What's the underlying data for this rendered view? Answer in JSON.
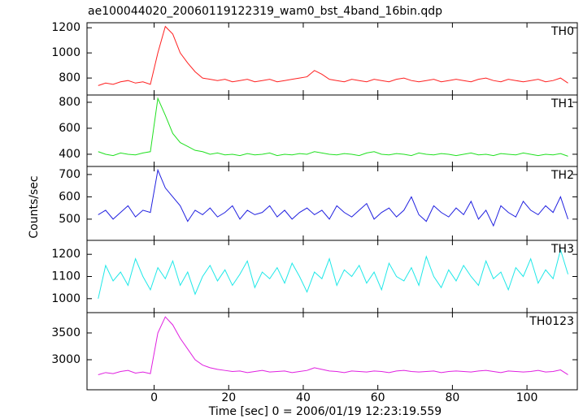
{
  "chart_data": {
    "type": "line",
    "title": "ae100044020_20060119122319_wam0_bst_4band_16bin.qdp",
    "x_label": "Time [sec] 0 = 2006/01/19 12:23:19.559",
    "y_label": "Counts/sec",
    "xlim": [
      -18,
      113.5
    ],
    "xticks": [
      0,
      20,
      40,
      60,
      80,
      100
    ],
    "x": [
      -15,
      -13,
      -11,
      -9,
      -7,
      -5,
      -3,
      -1,
      1,
      3,
      5,
      7,
      9,
      11,
      13,
      15,
      17,
      19,
      21,
      23,
      25,
      27,
      29,
      31,
      33,
      35,
      37,
      39,
      41,
      43,
      45,
      47,
      49,
      51,
      53,
      55,
      57,
      59,
      61,
      63,
      65,
      67,
      69,
      71,
      73,
      75,
      77,
      79,
      81,
      83,
      85,
      87,
      89,
      91,
      93,
      95,
      97,
      99,
      101,
      103,
      105,
      107,
      109,
      111
    ],
    "series": [
      {
        "name": "TH0",
        "color": "#ff2020",
        "ylim": [
          665,
          1240
        ],
        "yticks": [
          800,
          1000,
          1200
        ],
        "values": [
          740,
          760,
          750,
          770,
          780,
          760,
          770,
          750,
          1000,
          1210,
          1150,
          1000,
          920,
          850,
          800,
          790,
          780,
          790,
          770,
          780,
          790,
          770,
          780,
          790,
          770,
          780,
          790,
          800,
          810,
          860,
          830,
          790,
          780,
          770,
          790,
          780,
          770,
          790,
          780,
          770,
          790,
          800,
          780,
          770,
          780,
          790,
          770,
          780,
          790,
          780,
          770,
          790,
          800,
          780,
          770,
          790,
          780,
          770,
          780,
          790,
          770,
          780,
          800,
          760
        ]
      },
      {
        "name": "TH1",
        "color": "#20e020",
        "ylim": [
          306,
          856
        ],
        "yticks": [
          400,
          600,
          800
        ],
        "values": [
          420,
          400,
          390,
          410,
          400,
          395,
          410,
          420,
          830,
          700,
          560,
          490,
          460,
          430,
          420,
          400,
          410,
          395,
          400,
          390,
          405,
          395,
          400,
          410,
          390,
          400,
          395,
          405,
          400,
          420,
          410,
          400,
          395,
          405,
          400,
          390,
          410,
          420,
          400,
          395,
          405,
          400,
          390,
          410,
          400,
          395,
          405,
          400,
          390,
          400,
          410,
          395,
          400,
          390,
          405,
          400,
          395,
          410,
          400,
          390,
          400,
          395,
          405,
          385
        ]
      },
      {
        "name": "TH2",
        "color": "#2020e0",
        "ylim": [
          405,
          736
        ],
        "yticks": [
          500,
          600,
          700
        ],
        "values": [
          520,
          540,
          500,
          530,
          560,
          510,
          540,
          530,
          720,
          640,
          600,
          560,
          490,
          540,
          520,
          550,
          510,
          530,
          560,
          500,
          540,
          520,
          530,
          560,
          510,
          540,
          500,
          530,
          550,
          520,
          540,
          500,
          560,
          530,
          510,
          540,
          570,
          500,
          530,
          550,
          510,
          540,
          600,
          520,
          490,
          560,
          530,
          510,
          550,
          520,
          580,
          500,
          540,
          470,
          560,
          530,
          510,
          580,
          540,
          520,
          560,
          530,
          600,
          500
        ]
      },
      {
        "name": "TH3",
        "color": "#20e8e8",
        "ylim": [
          937,
          1263
        ],
        "yticks": [
          1000,
          1100,
          1200
        ],
        "values": [
          1000,
          1150,
          1080,
          1120,
          1060,
          1180,
          1100,
          1040,
          1140,
          1090,
          1170,
          1060,
          1120,
          1020,
          1100,
          1150,
          1080,
          1130,
          1060,
          1110,
          1170,
          1050,
          1120,
          1090,
          1140,
          1070,
          1160,
          1100,
          1030,
          1120,
          1090,
          1180,
          1060,
          1130,
          1100,
          1150,
          1070,
          1120,
          1040,
          1160,
          1100,
          1080,
          1140,
          1060,
          1190,
          1100,
          1050,
          1130,
          1080,
          1150,
          1100,
          1060,
          1170,
          1090,
          1120,
          1040,
          1140,
          1100,
          1180,
          1070,
          1130,
          1090,
          1220,
          1110
        ]
      },
      {
        "name": "TH0123",
        "color": "#e020e0",
        "ylim": [
          2439,
          3879
        ],
        "yticks": [
          3000,
          3500
        ],
        "values": [
          2720,
          2760,
          2740,
          2780,
          2800,
          2750,
          2770,
          2740,
          3500,
          3800,
          3650,
          3400,
          3200,
          3000,
          2900,
          2850,
          2820,
          2800,
          2780,
          2790,
          2760,
          2780,
          2800,
          2770,
          2780,
          2790,
          2760,
          2780,
          2800,
          2850,
          2820,
          2790,
          2780,
          2760,
          2790,
          2780,
          2770,
          2790,
          2780,
          2760,
          2790,
          2800,
          2780,
          2770,
          2780,
          2790,
          2760,
          2780,
          2790,
          2780,
          2770,
          2790,
          2800,
          2780,
          2760,
          2790,
          2780,
          2770,
          2780,
          2800,
          2770,
          2780,
          2810,
          2720
        ]
      }
    ]
  }
}
